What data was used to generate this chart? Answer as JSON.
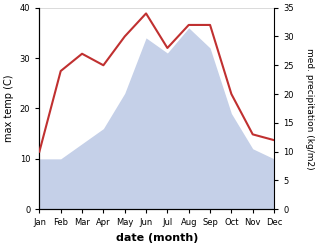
{
  "months": [
    "Jan",
    "Feb",
    "Mar",
    "Apr",
    "May",
    "Jun",
    "Jul",
    "Aug",
    "Sep",
    "Oct",
    "Nov",
    "Dec"
  ],
  "max_temp": [
    10,
    10,
    13,
    16,
    23,
    34,
    31,
    36,
    32,
    19,
    12,
    10
  ],
  "precipitation": [
    10,
    24,
    27,
    25,
    30,
    34,
    28,
    32,
    32,
    20,
    13,
    12
  ],
  "temp_fill_color": "#c5d0e8",
  "precip_color": "#c03030",
  "xlabel": "date (month)",
  "ylabel_left": "max temp (C)",
  "ylabel_right": "med. precipitation (kg/m2)",
  "ylim_left": [
    0,
    40
  ],
  "ylim_right": [
    0,
    35
  ],
  "yticks_left": [
    0,
    10,
    20,
    30,
    40
  ],
  "yticks_right": [
    0,
    5,
    10,
    15,
    20,
    25,
    30,
    35
  ],
  "precip_linewidth": 1.5,
  "background_color": "#ffffff"
}
